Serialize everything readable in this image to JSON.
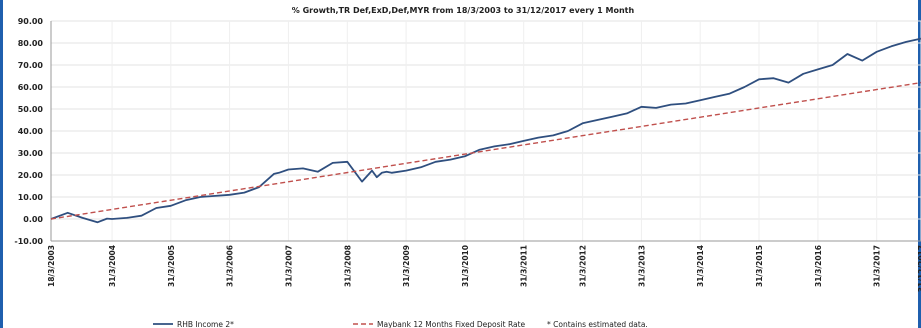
{
  "chart_data": {
    "type": "line",
    "title": "% Growth,TR Def,ExD,Def,MYR from 18/3/2003 to 31/12/2017 every 1 Month",
    "xlabel": "",
    "ylabel": "",
    "ylim": [
      -10,
      90
    ],
    "xlim": [
      "2003-03-18",
      "2017-12-31"
    ],
    "y_ticks": [
      "90.00",
      "80.00",
      "70.00",
      "60.00",
      "50.00",
      "40.00",
      "30.00",
      "20.00",
      "10.00",
      "0.00",
      "-10.00"
    ],
    "x_ticks": [
      "18/3/2003",
      "31/3/2004",
      "31/3/2005",
      "31/3/2006",
      "31/3/2007",
      "31/3/2008",
      "31/3/2009",
      "31/3/2010",
      "31/3/2011",
      "31/3/2012",
      "31/3/2013",
      "31/3/2014",
      "31/3/2015",
      "31/3/2016",
      "31/3/2017",
      "31/12/2017"
    ],
    "grid": true,
    "legend_position": "bottom",
    "series": [
      {
        "name": "RHB Income 2*",
        "color": "#2f4f7f",
        "style": "solid",
        "x": [
          "2003-03-18",
          "2003-06-30",
          "2003-09-30",
          "2003-12-31",
          "2004-02-29",
          "2004-03-31",
          "2004-06-30",
          "2004-09-30",
          "2004-12-31",
          "2005-03-31",
          "2005-06-30",
          "2005-09-30",
          "2005-12-31",
          "2006-03-31",
          "2006-06-30",
          "2006-09-30",
          "2006-12-31",
          "2007-01-31",
          "2007-03-31",
          "2007-06-30",
          "2007-09-30",
          "2007-12-31",
          "2008-03-31",
          "2008-06-30",
          "2008-08-31",
          "2008-09-30",
          "2008-10-31",
          "2008-11-30",
          "2008-12-31",
          "2009-03-31",
          "2009-06-30",
          "2009-09-30",
          "2009-12-31",
          "2010-03-31",
          "2010-06-30",
          "2010-09-30",
          "2010-12-31",
          "2011-03-31",
          "2011-06-30",
          "2011-09-30",
          "2011-12-31",
          "2012-03-31",
          "2012-06-30",
          "2012-09-30",
          "2012-12-31",
          "2013-03-31",
          "2013-06-30",
          "2013-09-30",
          "2013-12-31",
          "2014-03-31",
          "2014-06-30",
          "2014-09-30",
          "2014-12-31",
          "2015-03-31",
          "2015-06-30",
          "2015-09-30",
          "2015-12-31",
          "2016-03-31",
          "2016-06-30",
          "2016-09-30",
          "2016-12-31",
          "2017-03-31",
          "2017-06-30",
          "2017-09-30",
          "2017-12-31"
        ],
        "y": [
          0.0,
          2.8,
          0.5,
          -1.5,
          0.2,
          0.0,
          0.5,
          1.5,
          5.0,
          6.0,
          8.5,
          10.0,
          10.5,
          11.0,
          12.0,
          14.5,
          20.5,
          21.0,
          22.5,
          23.0,
          21.5,
          25.5,
          26.0,
          17.0,
          22.0,
          19.0,
          21.0,
          21.5,
          21.0,
          22.0,
          23.5,
          26.0,
          27.0,
          28.5,
          31.5,
          33.0,
          34.0,
          35.5,
          37.0,
          38.0,
          40.0,
          43.5,
          45.0,
          46.5,
          48.0,
          51.0,
          50.5,
          52.0,
          52.5,
          54.0,
          55.5,
          57.0,
          60.0,
          63.5,
          64.0,
          62.0,
          66.0,
          68.0,
          70.0,
          75.0,
          72.0,
          76.0,
          78.5,
          80.5,
          82.0
        ]
      },
      {
        "name": "Maybank 12 Months Fixed Deposit Rate",
        "color": "#c0504d",
        "style": "dashed",
        "x": [
          "2003-03-18",
          "2017-12-31"
        ],
        "y": [
          0.0,
          62.0
        ]
      }
    ],
    "footnote": "* Contains estimated data."
  }
}
